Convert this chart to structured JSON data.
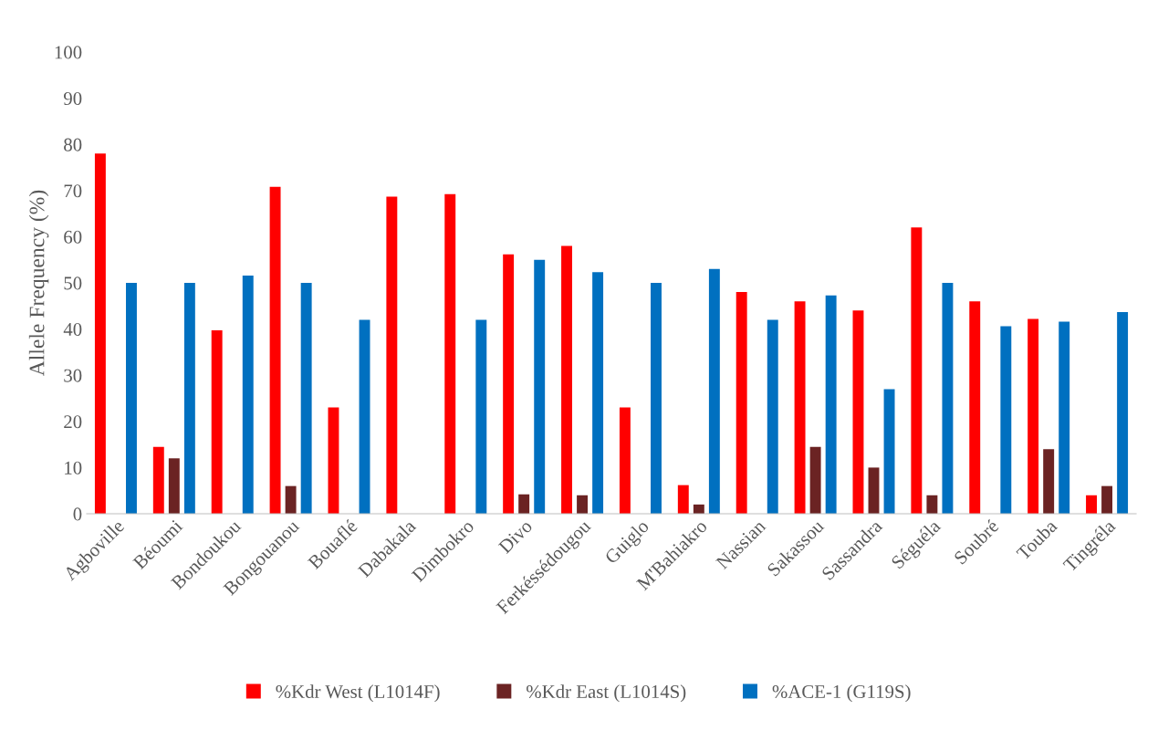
{
  "chart_data": {
    "type": "bar",
    "ylabel": "Allele Frequency (%)",
    "categories": [
      "Agboville",
      "Béoumi",
      "Bondoukou",
      "Bongouanou",
      "Bouaflé",
      "Dabakala",
      "Dimbokro",
      "Divo",
      "Ferkéssédougou",
      "Guiglo",
      "M'Bahiakro",
      "Nassian",
      "Sakassou",
      "Sassandra",
      "Séguéla",
      "Soubré",
      "Touba",
      "Tingréla"
    ],
    "series": [
      {
        "name": "%Kdr West (L1014F)",
        "color": "#ff0000",
        "values": [
          78,
          14.5,
          39.7,
          70.8,
          23,
          68.7,
          69.2,
          56.2,
          58,
          23,
          6.2,
          48,
          46,
          44,
          62,
          46,
          42.2,
          4
        ]
      },
      {
        "name": "%Kdr East (L1014S)",
        "color": "#6b2323",
        "values": [
          0,
          12,
          0,
          6,
          0,
          0,
          0,
          4.2,
          4,
          0,
          2,
          0,
          14.5,
          10,
          4,
          0,
          14,
          6
        ]
      },
      {
        "name": "%ACE-1 (G119S)",
        "color": "#0070c0",
        "values": [
          50,
          50,
          51.6,
          50,
          42,
          0,
          42,
          55,
          52.3,
          50,
          53,
          42,
          47.3,
          27,
          50,
          40.6,
          41.6,
          43.7
        ]
      }
    ],
    "ylim": [
      0,
      100
    ],
    "yticks": [
      0,
      10,
      20,
      30,
      40,
      50,
      60,
      70,
      80,
      90,
      100
    ],
    "grid": false,
    "legend": "bottom"
  }
}
